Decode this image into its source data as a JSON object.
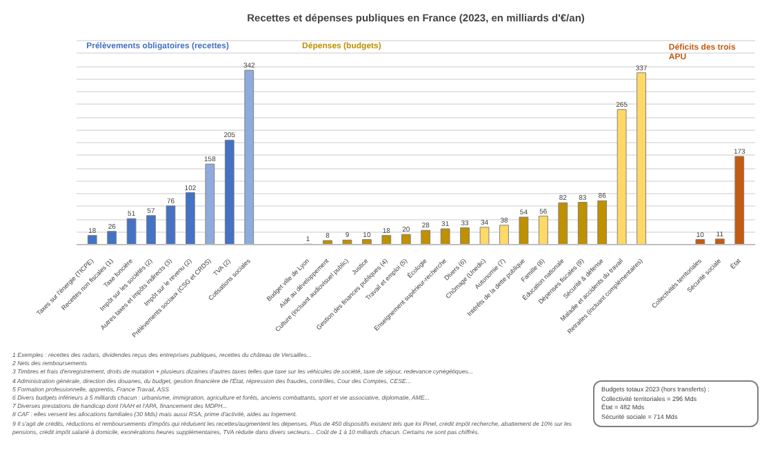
{
  "chart_data": {
    "type": "bar",
    "title": "Recettes et dépenses publiques en France (2023, en milliards d'€/an)",
    "categories": [
      "Taxes sur l'énergie (TICPE)",
      "Recettes non fiscales (1)",
      "Taxe foncière",
      "Impôt sur les sociétés (2)",
      "Autres taxes et impôts indirects (3)",
      "Impôt sur le revenu (2)",
      "Prélèvements sociaux (CSG et CRDS)",
      "TVA (2)",
      "Cotisations sociales",
      null,
      null,
      "Budget ville de Lyon",
      "Aide au développement",
      "Culture (incluant audiovisuel public)",
      "Justice",
      "Gestion des finances publiques (4)",
      "Travail et emploi (5)",
      "Écologie",
      "Enseignement supérieur-recherche",
      "Divers (6)",
      "Chômage (Unedic)",
      "Autonomie (7)",
      "Intérêts de la dette publique",
      "Famille (8)",
      "Éducation nationale",
      "Dépenses fiscales (9)",
      "Sécurité & défense",
      "Maladie et accidents du travail",
      "Retraites (incluant complémentaires)",
      null,
      null,
      "Collectivités territoriales",
      "Sécurité sociale",
      "État"
    ],
    "values": [
      18,
      26,
      51,
      57,
      76,
      102,
      158,
      205,
      342,
      null,
      null,
      1,
      8,
      9,
      10,
      18,
      20,
      28,
      31,
      33,
      34,
      38,
      54,
      56,
      82,
      83,
      86,
      265,
      337,
      null,
      null,
      10,
      11,
      173
    ],
    "colors": [
      "#4472c4",
      "#4472c4",
      "#4472c4",
      "#4472c4",
      "#4472c4",
      "#4472c4",
      "#8faadc",
      "#4472c4",
      "#8faadc",
      null,
      null,
      "#bf9000",
      "#bf9000",
      "#bf9000",
      "#bf9000",
      "#bf9000",
      "#bf9000",
      "#bf9000",
      "#bf9000",
      "#bf9000",
      "#ffd966",
      "#ffd966",
      "#bf9000",
      "#ffd966",
      "#bf9000",
      "#bf9000",
      "#bf9000",
      "#ffd966",
      "#ffd966",
      null,
      null,
      "#c55a11",
      "#c55a11",
      "#c55a11"
    ],
    "data_labels": true,
    "tick_labels": "x",
    "grid": "y",
    "annotations": [
      "Prélèvements obligatoires (recettes)",
      "Dépenses (budgets)",
      "Déficits des trois APU",
      "1 Exemples : recettes des radars, dividendes reçus des entreprises publiques, recettes du château de Versailles...",
      "2 Nets des remboursements",
      "3 Timbres et frais d'enregistrement, droits de mutation + plusieurs dizaines d'autres taxes telles que taxe sur les véhicules de société, taxe de séjour, redevance cynégétiques...",
      "4 Administration générale, direction des douanes, du budget, gestion financière de l'État, répression des fraudes, contrôles, Cour des Comptes, CESE...",
      "5 Formation professionnelle, apprentis, France Travail, ASS",
      "6 Divers budgets inférieurs à 5 milliards chacun : urbanisme, immigration, agriculture et forêts, anciens combattants, sport et vie associative, diplomatie, AME...",
      "7 Diverses prestations de handicap dont l'AAH et l'APA, financement des MDPH...",
      "8 CAF : elles versent les allocations familiales (30 Mds) mais aussi RSA, prime d'activité, aides au logement.",
      "9 Il s'agit de crédits, réductions et remboursements d'impôts qui réduisent les recettes/augmentent les dépenses. Plus de 450 dispositifs existent tels que loi Pinel, crédit impôt recherche, abattement de 10% sur les pensions, crédit impôt salarié à domicile, exonérations heures supplémentaires, TVA réduite dans divers secteurs... Coût de 1 à 10 milliards chacun. Certains ne sont pas chiffrés.",
      "Budgets totaux 2023 (hors transferts) :",
      "Collectivité territoriales = 296 Mds",
      "État = 482 Mds",
      "Sécurité sociale = 714 Mds"
    ]
  }
}
